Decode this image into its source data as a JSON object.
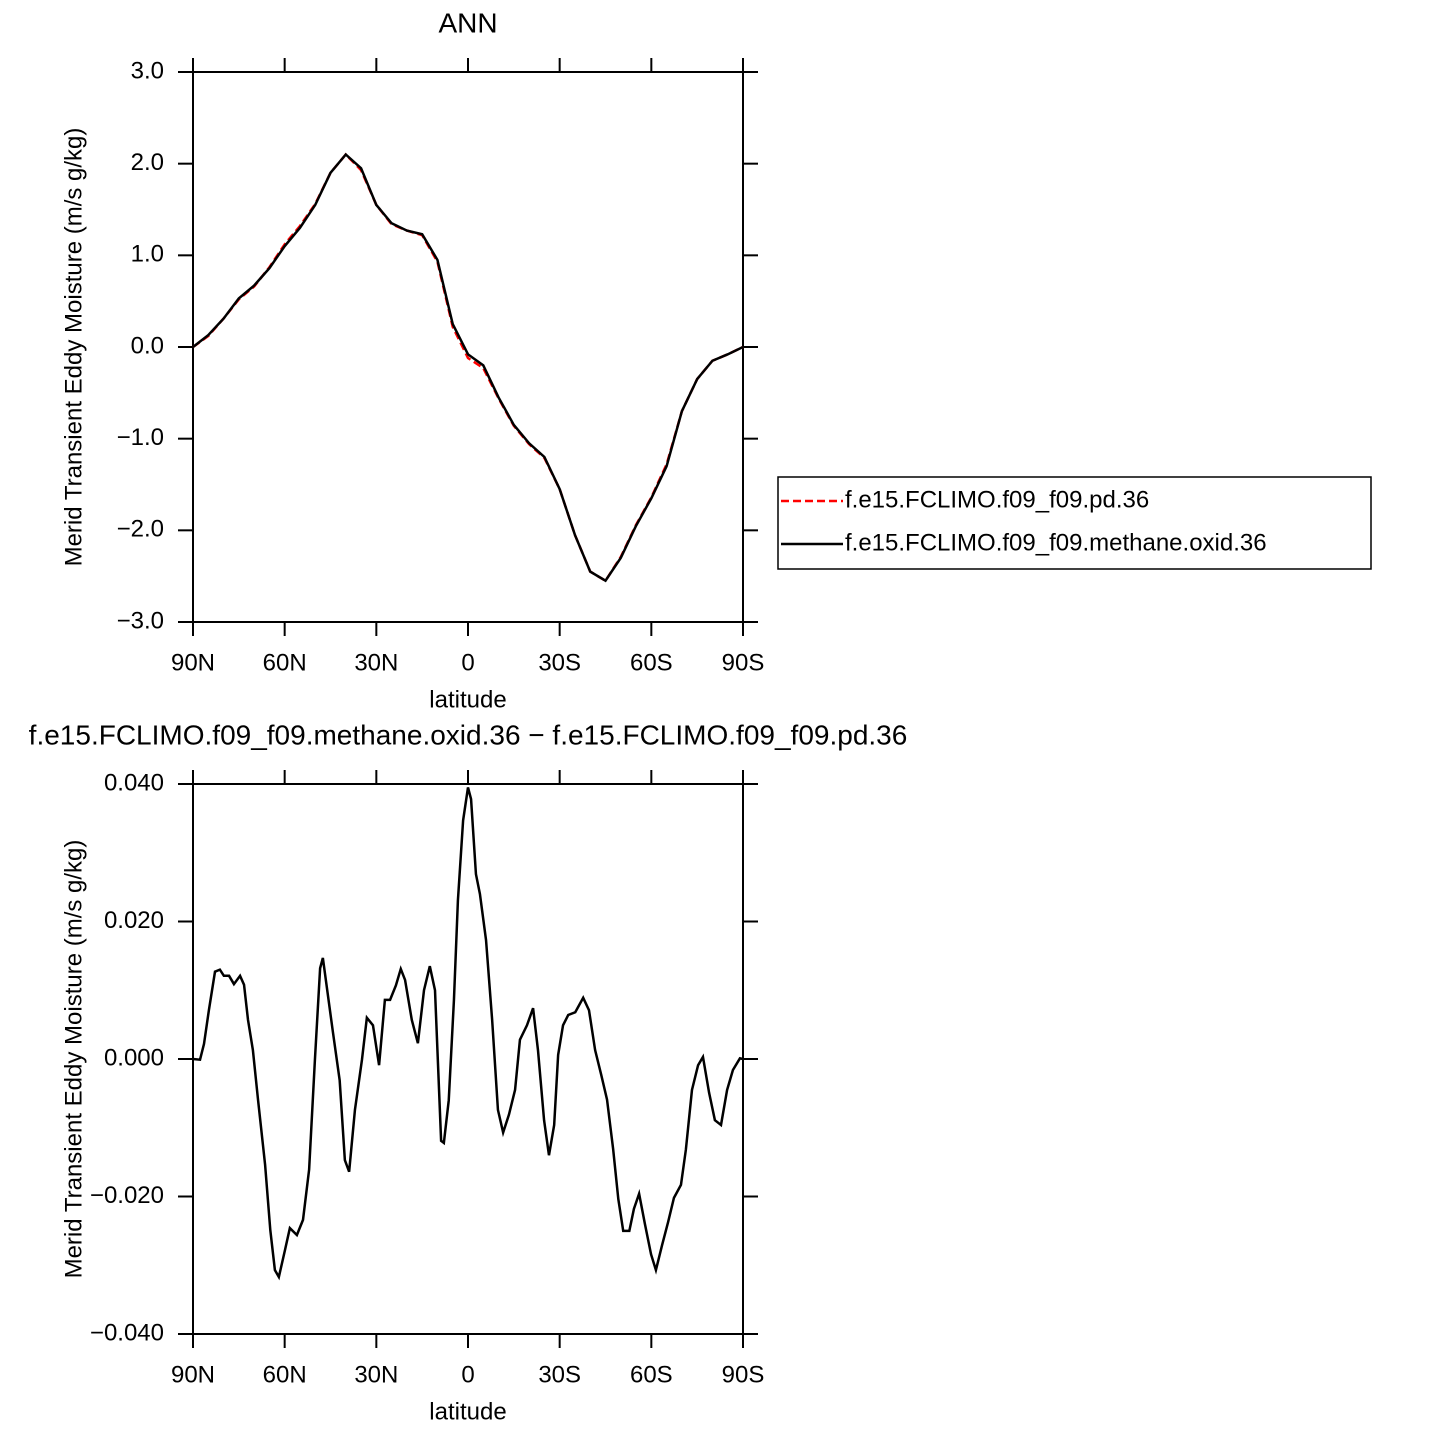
{
  "chart_data": [
    {
      "type": "line",
      "title": "ANN",
      "xlabel": "latitude",
      "ylabel": "Merid Transient Eddy Moisture (m/s g/kg)",
      "x": [
        90,
        85,
        80,
        75,
        70,
        65,
        60,
        55,
        50,
        45,
        40,
        35,
        30,
        25,
        20,
        15,
        10,
        5,
        0,
        -5,
        -10,
        -15,
        -20,
        -25,
        -30,
        -35,
        -40,
        -45,
        -50,
        -55,
        -60,
        -65,
        -70,
        -75,
        -80,
        -85,
        -90
      ],
      "series": [
        {
          "name": "f.e15.FCLIMO.f09_f09.pd.36",
          "color": "#ff0000",
          "line_style": "dashed",
          "values": [
            0.0,
            0.12,
            0.31,
            0.52,
            0.66,
            0.87,
            1.12,
            1.32,
            1.56,
            1.9,
            2.1,
            1.93,
            1.55,
            1.34,
            1.27,
            1.22,
            0.93,
            0.22,
            -0.12,
            -0.23,
            -0.56,
            -0.86,
            -1.06,
            -1.21,
            -1.55,
            -2.05,
            -2.45,
            -2.55,
            -2.29,
            -1.94,
            -1.64,
            -1.28,
            -0.7,
            -0.35,
            -0.15,
            -0.08,
            0.0
          ]
        },
        {
          "name": "f.e15.FCLIMO.f09_f09.methane.oxid.36",
          "color": "#000000",
          "line_style": "solid",
          "values": [
            0.0,
            0.13,
            0.31,
            0.53,
            0.67,
            0.86,
            1.1,
            1.3,
            1.55,
            1.9,
            2.1,
            1.95,
            1.55,
            1.35,
            1.27,
            1.23,
            0.95,
            0.25,
            -0.08,
            -0.2,
            -0.55,
            -0.85,
            -1.05,
            -1.2,
            -1.55,
            -2.05,
            -2.45,
            -2.55,
            -2.3,
            -1.95,
            -1.65,
            -1.3,
            -0.7,
            -0.35,
            -0.15,
            -0.08,
            0.0
          ]
        }
      ],
      "xlim": [
        90,
        -90
      ],
      "xticks": [
        {
          "value": 90,
          "label": "90N"
        },
        {
          "value": 60,
          "label": "60N"
        },
        {
          "value": 30,
          "label": "30N"
        },
        0,
        {
          "value": -30,
          "label": "30S"
        },
        {
          "value": -60,
          "label": "60S"
        },
        {
          "value": -90,
          "label": "90S"
        }
      ],
      "ylim": [
        -3,
        3
      ],
      "yticks": [
        {
          "value": -3,
          "label": "−3.0"
        },
        {
          "value": -2,
          "label": "−2.0"
        },
        {
          "value": -1,
          "label": "−1.0"
        },
        {
          "value": 0,
          "label": "0.0"
        },
        {
          "value": 1,
          "label": "1.0"
        },
        {
          "value": 2,
          "label": "2.0"
        },
        {
          "value": 3,
          "label": "3.0"
        }
      ],
      "legend": "right"
    },
    {
      "type": "line",
      "title": "f.e15.FCLIMO.f09_f09.methane.oxid.36 − f.e15.FCLIMO.f09_f09.pd.36",
      "xlabel": "latitude",
      "ylabel": "Merid Transient Eddy Moisture (m/s g/kg)",
      "x": [
        90,
        87.7,
        86.4,
        84.8,
        82.8,
        81.2,
        79.9,
        78.2,
        76.6,
        74.6,
        73.3,
        72.0,
        70.4,
        68.7,
        66.4,
        64.7,
        63.2,
        61.9,
        59.9,
        58.3,
        56.0,
        54.0,
        52.0,
        50.1,
        48.4,
        47.5,
        44.3,
        42.0,
        40.3,
        38.9,
        37.0,
        34.7,
        33.1,
        31.1,
        29.1,
        27.2,
        25.5,
        23.6,
        22.0,
        20.6,
        18.4,
        16.4,
        14.4,
        12.5,
        10.8,
        8.8,
        7.9,
        6.3,
        4.6,
        3.3,
        1.6,
        0,
        -1.0,
        -2.6,
        -3.9,
        -5.9,
        -7.9,
        -9.8,
        -11.5,
        -13.4,
        -15.4,
        -17.0,
        -19.3,
        -21.3,
        -22.9,
        -24.9,
        -26.5,
        -28.2,
        -29.5,
        -31.1,
        -32.8,
        -35.1,
        -37.7,
        -39.6,
        -41.6,
        -43.6,
        -45.5,
        -47.5,
        -49.2,
        -50.8,
        -52.8,
        -54.3,
        -56.0,
        -57.9,
        -59.9,
        -61.5,
        -63.5,
        -65.5,
        -67.4,
        -69.7,
        -71.3,
        -73.3,
        -75.3,
        -76.9,
        -78.9,
        -80.8,
        -82.8,
        -84.8,
        -86.7,
        -89.0,
        -90
      ],
      "series": [
        {
          "color": "#000000",
          "line_style": "solid",
          "values": [
            0,
            -0.0001,
            0.0022,
            0.0071,
            0.0127,
            0.013,
            0.0121,
            0.0121,
            0.0109,
            0.0121,
            0.0108,
            0.0057,
            0.0013,
            -0.006,
            -0.0154,
            -0.0249,
            -0.0307,
            -0.0317,
            -0.0278,
            -0.0246,
            -0.0256,
            -0.0234,
            -0.0161,
            -0.0001,
            0.0132,
            0.0147,
            0.0042,
            -0.0031,
            -0.0147,
            -0.0164,
            -0.0074,
            -0.0001,
            0.006,
            0.0049,
            -0.0009,
            0.0086,
            0.0086,
            0.0107,
            0.0131,
            0.0115,
            0.0057,
            0.0023,
            0.01,
            0.0135,
            0.01,
            -0.0119,
            -0.0122,
            -0.006,
            0.0086,
            0.0231,
            0.0347,
            0.0395,
            0.0378,
            0.0269,
            0.024,
            0.0173,
            0.0057,
            -0.0074,
            -0.0107,
            -0.0081,
            -0.0045,
            0.0028,
            0.0049,
            0.0074,
            0.0013,
            -0.0089,
            -0.014,
            -0.0096,
            0.0006,
            0.0049,
            0.0064,
            0.0068,
            0.0089,
            0.0071,
            0.0013,
            -0.0023,
            -0.0059,
            -0.0131,
            -0.0204,
            -0.025,
            -0.025,
            -0.0218,
            -0.0196,
            -0.024,
            -0.0284,
            -0.0307,
            -0.0271,
            -0.0237,
            -0.0202,
            -0.0183,
            -0.0132,
            -0.0045,
            -0.0009,
            0.0003,
            -0.0049,
            -0.0089,
            -0.0096,
            -0.0045,
            -0.0016,
            0.0001,
            0
          ]
        }
      ],
      "xlim": [
        90,
        -90
      ],
      "xticks": [
        {
          "value": 90,
          "label": "90N"
        },
        {
          "value": 60,
          "label": "60N"
        },
        {
          "value": 30,
          "label": "30N"
        },
        0,
        {
          "value": -30,
          "label": "30S"
        },
        {
          "value": -60,
          "label": "60S"
        },
        {
          "value": -90,
          "label": "90S"
        }
      ],
      "ylim": [
        -0.04,
        0.04
      ],
      "yticks": [
        {
          "value": -0.04,
          "label": "−0.040"
        },
        {
          "value": -0.02,
          "label": "−0.020"
        },
        {
          "value": 0,
          "label": "0.000"
        },
        {
          "value": 0.02,
          "label": "0.020"
        },
        {
          "value": 0.04,
          "label": "0.040"
        }
      ]
    }
  ]
}
